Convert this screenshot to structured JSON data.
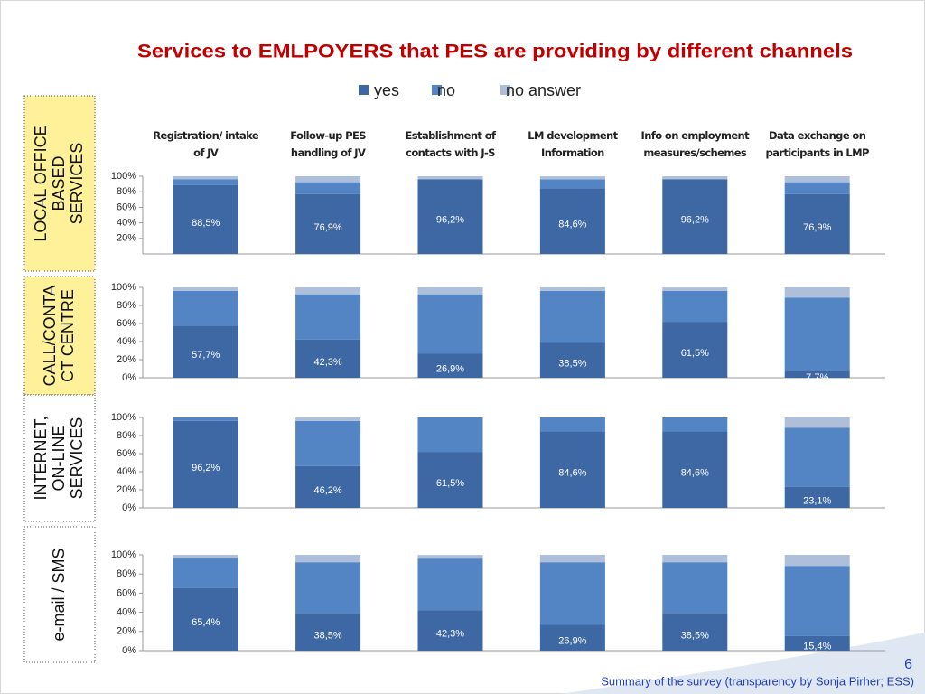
{
  "title": "Services to  EMLPOYERS  that  PES are providing by different channels",
  "page_number": "6",
  "footer": "Summary of the survey (transparency by Sonja Pirher; ESS)",
  "chart_data": [
    {
      "type": "bar",
      "stacked": true,
      "row_label": [
        "LOCAL OFFICE",
        "BASED",
        "SERVICES"
      ],
      "categories": [
        "Registration/ intake  of JV",
        "Follow-up PES handling of JV",
        "Establishment of contacts with J-S",
        "LM development Information",
        "Info on employment measures/schemes",
        "Data exchange on participants in LMP"
      ],
      "ylim": [
        0,
        100
      ],
      "yticks": [
        {
          "value": 20,
          "label": "20%"
        },
        {
          "value": 40,
          "label": "40%"
        },
        {
          "value": 60,
          "label": "60%"
        },
        {
          "value": 80,
          "label": "80%"
        },
        {
          "value": 100,
          "label": "100%"
        }
      ],
      "series": [
        {
          "name": "yes",
          "color": "#3d68a3",
          "values": [
            88.5,
            76.9,
            96.2,
            84.6,
            96.2,
            76.9
          ],
          "value_labels": [
            "88,5%",
            "76,9%",
            "96,2%",
            "84,6%",
            "96,2%",
            "76,9%"
          ]
        },
        {
          "name": "no",
          "color": "#5384c4",
          "values": [
            7.7,
            15.4,
            0,
            11.5,
            0,
            15.4
          ]
        },
        {
          "name": "no answer",
          "color": "#aebfdc",
          "values": [
            3.8,
            7.7,
            3.8,
            3.8,
            3.8,
            7.7
          ]
        }
      ]
    },
    {
      "type": "bar",
      "stacked": true,
      "row_label": [
        "CALL/CONTA",
        "CT CENTRE"
      ],
      "ylim": [
        0,
        100
      ],
      "yticks": [
        {
          "value": 0,
          "label": "0%"
        },
        {
          "value": 20,
          "label": "20%"
        },
        {
          "value": 40,
          "label": "40%"
        },
        {
          "value": 60,
          "label": "60%"
        },
        {
          "value": 80,
          "label": "80%"
        },
        {
          "value": 100,
          "label": "100%"
        }
      ],
      "series": [
        {
          "color": "#3d68a3",
          "values": [
            57.7,
            42.3,
            26.9,
            38.5,
            61.5,
            7.7
          ],
          "value_labels": [
            "57,7%",
            "42,3%",
            "26,9%",
            "38,5%",
            "61,5%",
            "7,7%"
          ]
        },
        {
          "color": "#5384c4",
          "values": [
            38.5,
            50,
            65.4,
            57.7,
            34.6,
            80.8
          ]
        },
        {
          "color": "#aebfdc",
          "values": [
            3.8,
            7.7,
            7.7,
            3.8,
            3.8,
            11.5
          ]
        }
      ]
    },
    {
      "type": "bar",
      "stacked": true,
      "row_label": [
        "INTERNET,",
        "ON-LINE",
        "SERVICES"
      ],
      "ylim": [
        0,
        100
      ],
      "yticks": [
        {
          "value": 0,
          "label": "0%"
        },
        {
          "value": 20,
          "label": "20%"
        },
        {
          "value": 40,
          "label": "40%"
        },
        {
          "value": 60,
          "label": "60%"
        },
        {
          "value": 80,
          "label": "80%"
        },
        {
          "value": 100,
          "label": "100%"
        }
      ],
      "series": [
        {
          "color": "#3d68a3",
          "values": [
            96.2,
            46.2,
            61.5,
            84.6,
            84.6,
            23.1
          ],
          "value_labels": [
            "96,2%",
            "46,2%",
            "61,5%",
            "84,6%",
            "84,6%",
            "23,1%"
          ]
        },
        {
          "color": "#5384c4",
          "values": [
            3.8,
            50,
            38.5,
            15.4,
            15.4,
            65.4
          ]
        },
        {
          "color": "#aebfdc",
          "values": [
            0,
            3.8,
            0,
            0,
            0,
            11.5
          ]
        }
      ]
    },
    {
      "type": "bar",
      "stacked": true,
      "row_label": [
        "e-mail / SMS"
      ],
      "ylim": [
        0,
        100
      ],
      "yticks": [
        {
          "value": 0,
          "label": "0%"
        },
        {
          "value": 20,
          "label": "20%"
        },
        {
          "value": 40,
          "label": "40%"
        },
        {
          "value": 60,
          "label": "60%"
        },
        {
          "value": 80,
          "label": "80%"
        },
        {
          "value": 100,
          "label": "100%"
        }
      ],
      "series": [
        {
          "color": "#3d68a3",
          "values": [
            65.4,
            38.5,
            42.3,
            26.9,
            38.5,
            15.4
          ],
          "value_labels": [
            "65,4%",
            "38,5%",
            "42,3%",
            "26,9%",
            "38,5%",
            "15,4%"
          ]
        },
        {
          "color": "#5384c4",
          "values": [
            30.8,
            53.8,
            53.8,
            65.4,
            53.8,
            73.1
          ]
        },
        {
          "color": "#aebfdc",
          "values": [
            3.8,
            7.7,
            3.8,
            7.7,
            7.7,
            11.5
          ]
        }
      ]
    }
  ]
}
